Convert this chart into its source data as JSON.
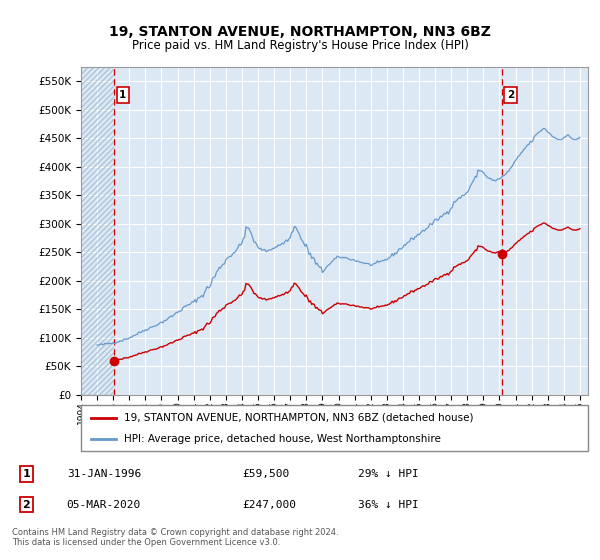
{
  "title": "19, STANTON AVENUE, NORTHAMPTON, NN3 6BZ",
  "subtitle": "Price paid vs. HM Land Registry's House Price Index (HPI)",
  "legend_line1": "19, STANTON AVENUE, NORTHAMPTON, NN3 6BZ (detached house)",
  "legend_line2": "HPI: Average price, detached house, West Northamptonshire",
  "annotation1_date": "31-JAN-1996",
  "annotation1_price": "£59,500",
  "annotation1_hpi": "29% ↓ HPI",
  "annotation2_date": "05-MAR-2020",
  "annotation2_price": "£247,000",
  "annotation2_hpi": "36% ↓ HPI",
  "footer": "Contains HM Land Registry data © Crown copyright and database right 2024.\nThis data is licensed under the Open Government Licence v3.0.",
  "sold_color": "#cc0000",
  "hpi_color": "#6699cc",
  "dashed_line_color": "#cc0000",
  "annotation_box_color": "#cc0000",
  "background_color": "#dce9f5",
  "ylim": [
    0,
    575000
  ],
  "yticks": [
    0,
    50000,
    100000,
    150000,
    200000,
    250000,
    300000,
    350000,
    400000,
    450000,
    500000,
    550000
  ],
  "xlim_start": 1994.0,
  "xlim_end": 2025.5,
  "sale1_x": 1996.08,
  "sale1_y": 59500,
  "sale2_x": 2020.17,
  "sale2_y": 247000
}
